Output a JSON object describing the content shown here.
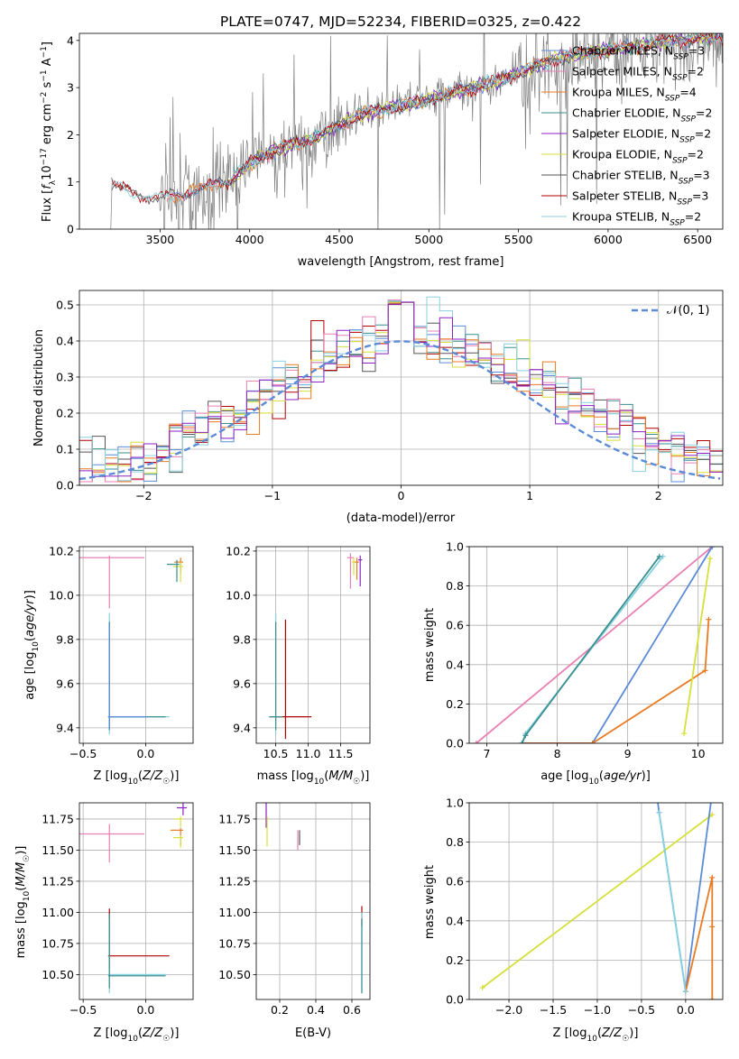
{
  "figure_title": "PLATE=0747, MJD=52234, FIBERID=0325, z=0.422",
  "colors": {
    "Chabrier MILES": "#5b8bd6",
    "Salpeter MILES": "#e87fb4",
    "Kroupa MILES": "#e87a22",
    "Chabrier ELODIE": "#3a8f8f",
    "Salpeter ELODIE": "#8b22c4",
    "Kroupa ELODIE": "#d7df3a",
    "Chabrier STELIB": "#555555",
    "Salpeter STELIB": "#b00000",
    "Kroupa STELIB": "#87d0e0",
    "data": "#808080"
  },
  "chart_data": [
    {
      "id": "spectrum",
      "type": "line",
      "title": "PLATE=0747, MJD=52234, FIBERID=0325, z=0.422",
      "xlabel": "wavelength [Angstrom, rest frame]",
      "ylabel": "Flux [f_λ 10^-17 erg cm^-2 s^-1 A^-1]",
      "xlim": [
        3050,
        6640
      ],
      "ylim": [
        0,
        4.15
      ],
      "xticks": [
        3500,
        4000,
        4500,
        5000,
        5500,
        6000,
        6500
      ],
      "yticks": [
        0,
        1,
        2,
        3,
        4
      ],
      "legend_position": "upper-right",
      "legend": [
        {
          "name": "Chabrier MILES",
          "nssp": "3"
        },
        {
          "name": "Salpeter MILES",
          "nssp": "2"
        },
        {
          "name": "Kroupa MILES",
          "nssp": "4"
        },
        {
          "name": "Chabrier ELODIE",
          "nssp": "2"
        },
        {
          "name": "Salpeter ELODIE",
          "nssp": "2"
        },
        {
          "name": "Kroupa ELODIE",
          "nssp": "2"
        },
        {
          "name": "Chabrier STELIB",
          "nssp": "3"
        },
        {
          "name": "Salpeter STELIB",
          "nssp": "3"
        },
        {
          "name": "Kroupa STELIB",
          "nssp": "2"
        }
      ],
      "continuum_wavelength": [
        3230,
        3300,
        3400,
        3500,
        3600,
        3700,
        3800,
        3900,
        4000,
        4100,
        4200,
        4300,
        4400,
        4500,
        4600,
        4700,
        4800,
        4900,
        5000,
        5100,
        5200,
        5300,
        5400,
        5500,
        5600,
        5700,
        5800,
        6000,
        6200,
        6400,
        6640
      ],
      "continuum_flux": [
        0.95,
        0.85,
        0.7,
        0.65,
        0.75,
        0.8,
        0.95,
        1.05,
        1.4,
        1.6,
        1.75,
        1.85,
        2.0,
        2.2,
        2.4,
        2.5,
        2.6,
        2.65,
        2.75,
        2.85,
        2.95,
        3.05,
        3.15,
        3.3,
        3.45,
        3.6,
        3.7,
        3.8,
        3.9,
        4.0,
        4.1
      ]
    },
    {
      "id": "residual_hist",
      "type": "area",
      "xlabel": "(data-model)/error",
      "ylabel": "Normed distribution",
      "xlim": [
        -2.5,
        2.5
      ],
      "ylim": [
        0,
        0.54
      ],
      "xticks": [
        -2,
        -1,
        0,
        1,
        2
      ],
      "yticks": [
        0,
        0.1,
        0.2,
        0.3,
        0.4,
        0.5
      ],
      "legend_position": "upper-right",
      "legend": "N(0,1)",
      "bin_width": 0.1
    },
    {
      "id": "age_vs_Z",
      "type": "scatter",
      "xlabel": "Z [log10(Z/Z☉)]",
      "ylabel": "age  [log10(age/yr)]",
      "xlim": [
        -0.53,
        0.38
      ],
      "ylim": [
        9.33,
        10.22
      ],
      "xticks": [
        -0.5,
        0.0
      ],
      "yticks": [
        9.4,
        9.6,
        9.8,
        10.0,
        10.2
      ]
    },
    {
      "id": "age_vs_mass",
      "type": "scatter",
      "xlabel": "mass [log10(M/M☉)]",
      "ylabel": "",
      "xlim": [
        10.2,
        11.95
      ],
      "ylim": [
        9.33,
        10.22
      ],
      "xticks": [
        10.5,
        11.0,
        11.5
      ],
      "yticks": [
        9.4,
        9.6,
        9.8,
        10.0,
        10.2
      ]
    },
    {
      "id": "weight_vs_age",
      "type": "line",
      "xlabel": "age  [log10(age/yr)]",
      "ylabel": "mass weight",
      "xlim": [
        6.75,
        10.35
      ],
      "ylim": [
        0,
        1
      ],
      "xticks": [
        7,
        8,
        9,
        10
      ],
      "yticks": [
        0,
        0.2,
        0.4,
        0.6,
        0.8,
        1.0
      ]
    },
    {
      "id": "mass_vs_Z",
      "type": "scatter",
      "xlabel": "Z [log10(Z/Z☉)]",
      "ylabel": "mass [log10(M/M☉)]",
      "xlim": [
        -0.53,
        0.38
      ],
      "ylim": [
        10.3,
        11.88
      ],
      "xticks": [
        -0.5,
        0.0
      ],
      "yticks": [
        10.5,
        10.75,
        11.0,
        11.25,
        11.5,
        11.75
      ]
    },
    {
      "id": "mass_vs_ebv",
      "type": "scatter",
      "xlabel": "E(B-V)",
      "ylabel": "",
      "xlim": [
        0.07,
        0.7
      ],
      "ylim": [
        10.3,
        11.88
      ],
      "xticks": [
        0.2,
        0.4,
        0.6
      ],
      "yticks": [
        10.5,
        10.75,
        11.0,
        11.25,
        11.5,
        11.75
      ]
    },
    {
      "id": "weight_vs_Z",
      "type": "line",
      "xlabel": "Z [log10(Z/Z☉)]",
      "ylabel": "mass weight",
      "xlim": [
        -2.45,
        0.42
      ],
      "ylim": [
        0,
        1
      ],
      "xticks": [
        -2.0,
        -1.5,
        -1.0,
        -0.5,
        0.0
      ],
      "yticks": [
        0,
        0.2,
        0.4,
        0.6,
        0.8,
        1.0
      ]
    }
  ]
}
